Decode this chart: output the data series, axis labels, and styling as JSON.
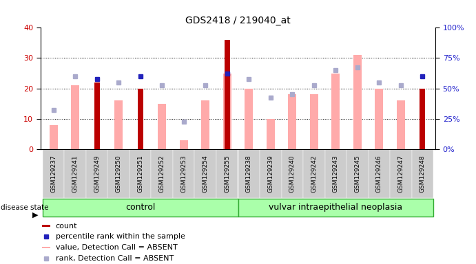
{
  "title": "GDS2418 / 219040_at",
  "samples": [
    "GSM129237",
    "GSM129241",
    "GSM129249",
    "GSM129250",
    "GSM129251",
    "GSM129252",
    "GSM129253",
    "GSM129254",
    "GSM129255",
    "GSM129238",
    "GSM129239",
    "GSM129240",
    "GSM129242",
    "GSM129243",
    "GSM129245",
    "GSM129246",
    "GSM129247",
    "GSM129248"
  ],
  "count_values": [
    0,
    0,
    22,
    0,
    20,
    0,
    0,
    0,
    36,
    0,
    0,
    0,
    0,
    0,
    0,
    0,
    0,
    20
  ],
  "percentile_values": [
    0,
    0,
    23,
    0,
    24,
    0,
    0,
    0,
    25,
    0,
    0,
    0,
    0,
    0,
    0,
    0,
    0,
    24
  ],
  "value_absent": [
    8,
    21,
    0,
    16,
    0,
    15,
    3,
    16,
    25,
    20,
    10,
    18,
    18,
    25,
    31,
    20,
    16,
    0
  ],
  "rank_absent": [
    13,
    24,
    0,
    22,
    0,
    21,
    9,
    21,
    0,
    23,
    17,
    18,
    21,
    26,
    27,
    22,
    21,
    0
  ],
  "control_range": [
    0,
    8
  ],
  "neoplasia_range": [
    9,
    17
  ],
  "group_labels": [
    "control",
    "vulvar intraepithelial neoplasia"
  ],
  "ylim_left": [
    0,
    40
  ],
  "ylim_right": [
    0,
    100
  ],
  "yticks_left": [
    0,
    10,
    20,
    30,
    40
  ],
  "yticks_right": [
    0,
    25,
    50,
    75,
    100
  ],
  "bar_color_dark_red": "#bb0000",
  "bar_color_pink": "#ffaaaa",
  "dot_color_blue": "#2222bb",
  "dot_color_lightblue": "#aaaacc",
  "group_bg": "#aaffaa",
  "group_border": "#33aa33",
  "tick_bg": "#cccccc",
  "tick_label_fontsize": 6.5,
  "axis_color_left": "#cc0000",
  "axis_color_right": "#2222cc",
  "legend_items": [
    {
      "color": "#bb0000",
      "type": "rect",
      "label": "count"
    },
    {
      "color": "#2222bb",
      "type": "square",
      "label": "percentile rank within the sample"
    },
    {
      "color": "#ffaaaa",
      "type": "rect",
      "label": "value, Detection Call = ABSENT"
    },
    {
      "color": "#aaaacc",
      "type": "square",
      "label": "rank, Detection Call = ABSENT"
    }
  ],
  "disease_state_label": "disease state"
}
